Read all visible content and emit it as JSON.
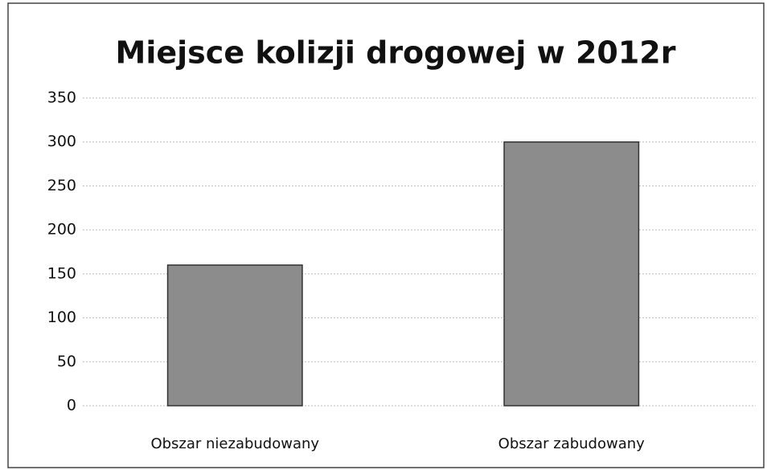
{
  "chart_data": {
    "type": "bar",
    "title": "Miejsce kolizji drogowej w 2012r",
    "categories": [
      "Obszar niezabudowany",
      "Obszar zabudowany"
    ],
    "values": [
      160,
      300
    ],
    "color": "#8c8c8c",
    "ylim": [
      0,
      350
    ],
    "yticks": [
      0,
      50,
      100,
      150,
      200,
      250,
      300,
      350
    ],
    "grid": true
  }
}
